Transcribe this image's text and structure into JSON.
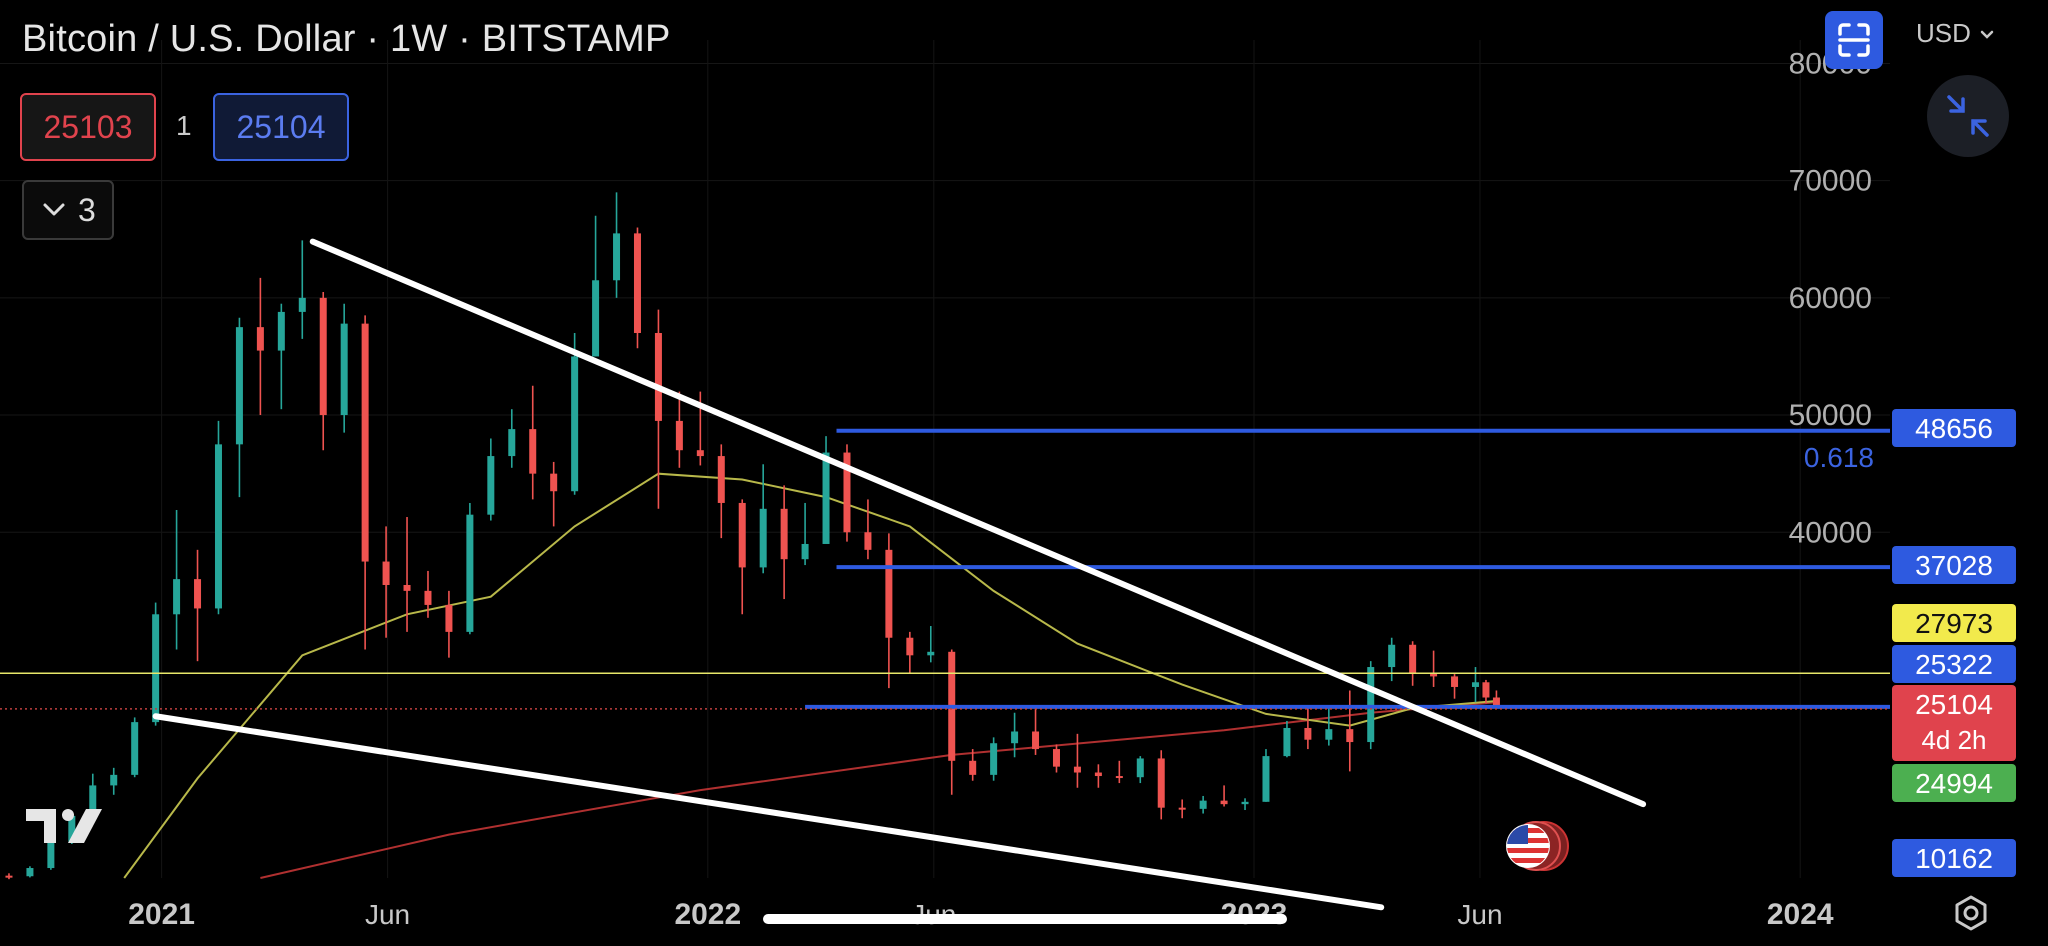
{
  "header": {
    "title": "Bitcoin / U.S. Dollar · 1W · BITSTAMP",
    "sell_price": "25103",
    "quantity": "1",
    "buy_price": "25104",
    "indicators_count": "3",
    "currency": "USD"
  },
  "icons": [
    "fullscreen-icon",
    "chevron-down-icon",
    "shrink-icon",
    "tradingview-logo-icon",
    "us-flag-event-icon",
    "settings-icon"
  ],
  "colors": {
    "background": "#000000",
    "up_candle": "#26a69a",
    "down_candle": "#ef5350",
    "trendline": "#ffffff",
    "horizontal_level": "#2e5ae0",
    "ma_short": "#b8b84a",
    "ma_long": "#b03030",
    "price_line_yellow": "#e8e86a"
  },
  "chart_data": {
    "type": "candlestick",
    "symbol": "Bitcoin / U.S. Dollar",
    "interval": "1W",
    "exchange": "BITSTAMP",
    "x_ticks": [
      "2021",
      "Jun",
      "2022",
      "Jun",
      "2023",
      "Jun",
      "2024"
    ],
    "y_ticks": [
      40000,
      50000,
      60000,
      70000,
      80000
    ],
    "ylim": [
      10500,
      82000
    ],
    "xlim": [
      "2020-09-15",
      "2024-03-01"
    ],
    "ohlc_weekly": [
      [
        "2020-09-21",
        10700,
        10900,
        10400,
        10650
      ],
      [
        "2020-10-05",
        10650,
        11500,
        10550,
        11350
      ],
      [
        "2020-10-19",
        11350,
        13800,
        11200,
        13600
      ],
      [
        "2020-11-02",
        13600,
        16000,
        13400,
        15800
      ],
      [
        "2020-11-16",
        15800,
        19400,
        15600,
        18400
      ],
      [
        "2020-11-30",
        18400,
        19900,
        17600,
        19300
      ],
      [
        "2020-12-14",
        19300,
        24200,
        19100,
        23800
      ],
      [
        "2020-12-28",
        23800,
        34000,
        23500,
        33000
      ],
      [
        "2021-01-11",
        33000,
        41900,
        30000,
        36000
      ],
      [
        "2021-01-25",
        36000,
        38500,
        29000,
        33500
      ],
      [
        "2021-02-08",
        33500,
        49500,
        33000,
        47500
      ],
      [
        "2021-02-22",
        47500,
        58300,
        43000,
        57500
      ],
      [
        "2021-03-08",
        57500,
        61700,
        50000,
        55500
      ],
      [
        "2021-03-22",
        55500,
        59500,
        50500,
        58800
      ],
      [
        "2021-04-05",
        58800,
        64900,
        56500,
        60000
      ],
      [
        "2021-04-19",
        60000,
        60500,
        47000,
        50000
      ],
      [
        "2021-05-03",
        50000,
        59500,
        48500,
        57800
      ],
      [
        "2021-05-17",
        57800,
        58500,
        30000,
        37500
      ],
      [
        "2021-05-31",
        37500,
        40500,
        31000,
        35500
      ],
      [
        "2021-06-14",
        35500,
        41300,
        31500,
        35000
      ],
      [
        "2021-06-28",
        35000,
        36700,
        32700,
        33800
      ],
      [
        "2021-07-12",
        33800,
        35000,
        29300,
        31500
      ],
      [
        "2021-07-26",
        31500,
        42500,
        31300,
        41500
      ],
      [
        "2021-08-09",
        41500,
        48000,
        41000,
        46500
      ],
      [
        "2021-08-23",
        46500,
        50500,
        45500,
        48800
      ],
      [
        "2021-09-06",
        48800,
        52500,
        42800,
        45000
      ],
      [
        "2021-09-20",
        45000,
        46000,
        40500,
        43500
      ],
      [
        "2021-10-04",
        43500,
        57000,
        43200,
        55000
      ],
      [
        "2021-10-18",
        55000,
        67000,
        55000,
        61500
      ],
      [
        "2021-11-01",
        61500,
        69000,
        60000,
        65500
      ],
      [
        "2021-11-15",
        65500,
        66000,
        55700,
        57000
      ],
      [
        "2021-11-29",
        57000,
        59000,
        42000,
        49500
      ],
      [
        "2021-12-13",
        49500,
        52000,
        45500,
        47000
      ],
      [
        "2021-12-27",
        47000,
        52000,
        45700,
        46500
      ],
      [
        "2022-01-10",
        46500,
        47500,
        39500,
        42500
      ],
      [
        "2022-01-24",
        42500,
        42800,
        33000,
        37000
      ],
      [
        "2022-02-07",
        37000,
        45800,
        36500,
        42000
      ],
      [
        "2022-02-21",
        42000,
        44000,
        34300,
        37700
      ],
      [
        "2022-03-07",
        37700,
        42500,
        37200,
        39000
      ],
      [
        "2022-03-21",
        39000,
        48200,
        40800,
        46800
      ],
      [
        "2022-04-04",
        46800,
        47500,
        39200,
        40000
      ],
      [
        "2022-04-18",
        40000,
        42800,
        37700,
        38500
      ],
      [
        "2022-05-02",
        38500,
        39900,
        26700,
        31000
      ],
      [
        "2022-05-16",
        31000,
        31500,
        28000,
        29500
      ],
      [
        "2022-05-30",
        29500,
        32000,
        28900,
        29800
      ],
      [
        "2022-06-13",
        29800,
        30000,
        17600,
        20500
      ],
      [
        "2022-06-27",
        20500,
        21500,
        18800,
        19300
      ],
      [
        "2022-07-11",
        19300,
        22500,
        18800,
        22000
      ],
      [
        "2022-07-25",
        22000,
        24600,
        20800,
        23000
      ],
      [
        "2022-08-08",
        23000,
        25200,
        21000,
        21500
      ],
      [
        "2022-08-22",
        21500,
        21900,
        19500,
        20000
      ],
      [
        "2022-09-05",
        20000,
        22800,
        18200,
        19500
      ],
      [
        "2022-09-19",
        19500,
        20200,
        18200,
        19200
      ],
      [
        "2022-10-03",
        19200,
        20500,
        18600,
        19100
      ],
      [
        "2022-10-17",
        19100,
        20900,
        18600,
        20700
      ],
      [
        "2022-10-31",
        20700,
        21400,
        15500,
        16500
      ],
      [
        "2022-11-14",
        16500,
        17200,
        15600,
        16400
      ],
      [
        "2022-11-28",
        16400,
        17500,
        16000,
        17100
      ],
      [
        "2022-12-12",
        17100,
        18400,
        16600,
        16800
      ],
      [
        "2022-12-26",
        16800,
        17300,
        16300,
        17000
      ],
      [
        "2023-01-09",
        17000,
        21500,
        17000,
        20900
      ],
      [
        "2023-01-23",
        20900,
        23900,
        20800,
        23300
      ],
      [
        "2023-02-06",
        23300,
        25200,
        21500,
        22300
      ],
      [
        "2023-02-20",
        22300,
        25000,
        21800,
        23200
      ],
      [
        "2023-03-06",
        23200,
        26500,
        19600,
        22100
      ],
      [
        "2023-03-20",
        22100,
        29000,
        21500,
        28500
      ],
      [
        "2023-04-03",
        28500,
        31000,
        27300,
        30400
      ],
      [
        "2023-04-17",
        30400,
        30700,
        26900,
        28000
      ],
      [
        "2023-05-01",
        28000,
        29900,
        26800,
        27700
      ],
      [
        "2023-05-15",
        27700,
        27900,
        25800,
        26800
      ],
      [
        "2023-05-29",
        26800,
        28500,
        25500,
        27200
      ],
      [
        "2023-06-05",
        27200,
        27400,
        25400,
        25900
      ],
      [
        "2023-06-12",
        25900,
        26500,
        25000,
        25104
      ]
    ],
    "ma_short_approx": [
      [
        "2020-12-07",
        10500
      ],
      [
        "2021-01-25",
        19000
      ],
      [
        "2021-04-05",
        29500
      ],
      [
        "2021-06-14",
        33000
      ],
      [
        "2021-08-09",
        34500
      ],
      [
        "2021-10-04",
        40500
      ],
      [
        "2021-11-29",
        45000
      ],
      [
        "2022-01-24",
        44500
      ],
      [
        "2022-03-21",
        43000
      ],
      [
        "2022-05-16",
        40500
      ],
      [
        "2022-07-11",
        35000
      ],
      [
        "2022-09-05",
        30500
      ],
      [
        "2022-11-14",
        27000
      ],
      [
        "2023-01-09",
        24500
      ],
      [
        "2023-03-06",
        23500
      ],
      [
        "2023-04-17",
        25000
      ],
      [
        "2023-06-12",
        25600
      ]
    ],
    "ma_long_approx": [
      [
        "2021-03-08",
        10500
      ],
      [
        "2021-07-12",
        14200
      ],
      [
        "2021-12-27",
        18000
      ],
      [
        "2022-06-13",
        21000
      ],
      [
        "2022-12-12",
        23100
      ],
      [
        "2023-03-20",
        24600
      ],
      [
        "2023-06-12",
        25500
      ]
    ],
    "trendlines": [
      {
        "from": [
          "2021-04-12",
          64800
        ],
        "to": [
          "2023-09-18",
          16800
        ]
      },
      {
        "from": [
          "2020-12-28",
          24300
        ],
        "to": [
          "2023-03-27",
          8000
        ]
      }
    ],
    "horizontal_levels": [
      {
        "price": 48656,
        "start": "2022-03-28",
        "label": "0.618"
      },
      {
        "price": 37028,
        "start": "2022-03-28"
      },
      {
        "price": 25104,
        "start": "2022-03-07"
      }
    ],
    "price_labels": [
      {
        "value": "48656",
        "color": "#2e5ae0"
      },
      {
        "value": "37028",
        "color": "#2e5ae0"
      },
      {
        "value": "27973",
        "color": "#f2ea4c"
      },
      {
        "value": "25322",
        "color": "#2e5ae0"
      },
      {
        "value": "25104",
        "sub": "4d 2h",
        "color": "#e0434d"
      },
      {
        "value": "24994",
        "color": "#4caf50"
      },
      {
        "value": "10162",
        "color": "#2e5ae0"
      }
    ],
    "yellow_line_price": 27973,
    "fib_label": "0.618"
  }
}
